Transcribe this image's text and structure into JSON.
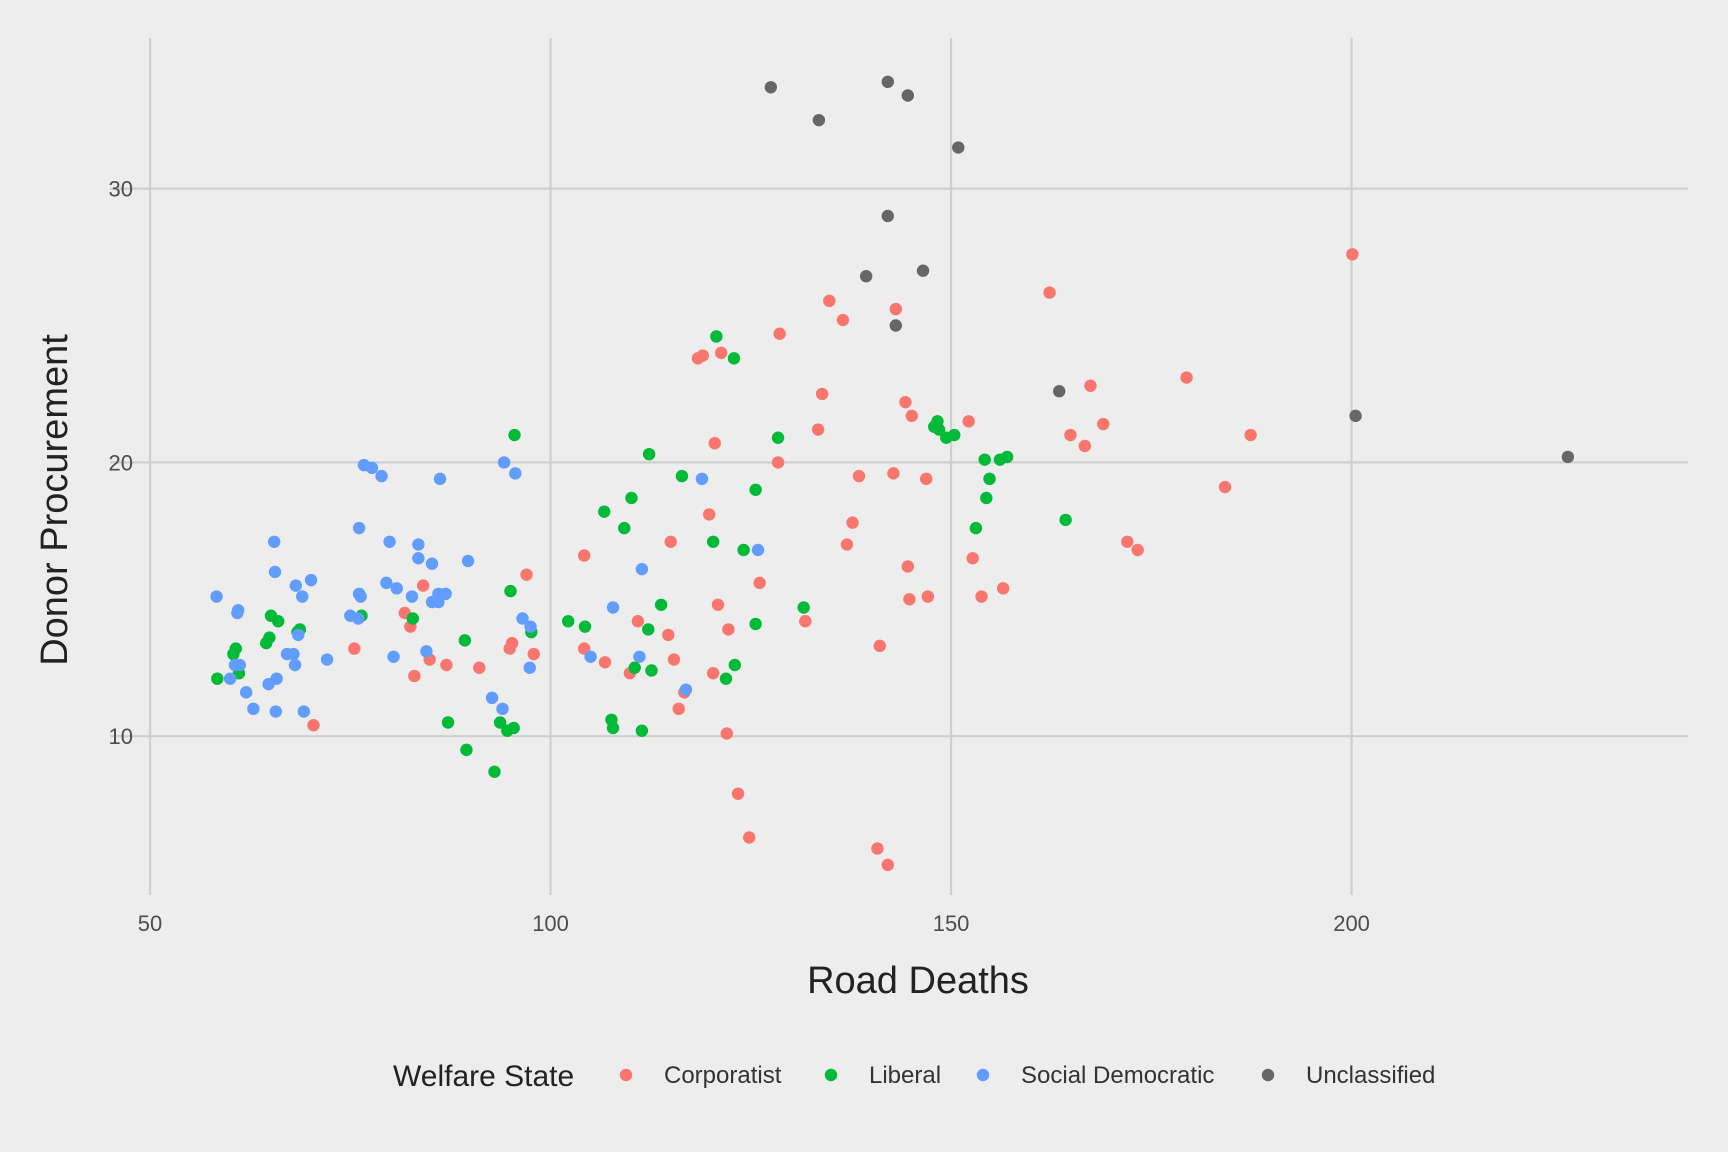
{
  "chart_data": {
    "type": "scatter",
    "xlabel": "Road Deaths",
    "ylabel": "Donor Procurement",
    "xlim": [
      45,
      242
    ],
    "ylim": [
      4.2,
      35.5
    ],
    "x_ticks": [
      50,
      100,
      150,
      200
    ],
    "y_ticks": [
      10,
      20,
      30
    ],
    "grid": true,
    "legend": {
      "title": "Welfare State",
      "placement": "bottom"
    },
    "series": [
      {
        "name": "Corporatist",
        "color": "#f8766d",
        "points": [
          [
            70.4,
            10.4
          ],
          [
            75.5,
            13.2
          ],
          [
            81.8,
            14.5
          ],
          [
            82.5,
            14.0
          ],
          [
            83.0,
            12.2
          ],
          [
            84.1,
            15.5
          ],
          [
            84.9,
            12.8
          ],
          [
            87.0,
            12.6
          ],
          [
            91.1,
            12.5
          ],
          [
            94.9,
            13.2
          ],
          [
            95.2,
            13.4
          ],
          [
            97.0,
            15.9
          ],
          [
            97.9,
            13.0
          ],
          [
            104.2,
            16.6
          ],
          [
            104.2,
            13.2
          ],
          [
            106.8,
            12.7
          ],
          [
            109.9,
            12.3
          ],
          [
            110.9,
            14.2
          ],
          [
            115.0,
            17.1
          ],
          [
            114.7,
            13.7
          ],
          [
            115.4,
            12.8
          ],
          [
            116.0,
            11.0
          ],
          [
            116.7,
            11.6
          ],
          [
            118.4,
            23.8
          ],
          [
            119.0,
            23.9
          ],
          [
            119.8,
            18.1
          ],
          [
            120.3,
            12.3
          ],
          [
            120.5,
            20.7
          ],
          [
            120.9,
            14.8
          ],
          [
            121.3,
            24.0
          ],
          [
            122.0,
            10.1
          ],
          [
            122.2,
            13.9
          ],
          [
            123.4,
            7.9
          ],
          [
            124.8,
            6.3
          ],
          [
            126.1,
            15.6
          ],
          [
            128.4,
            20.0
          ],
          [
            128.6,
            24.7
          ],
          [
            131.8,
            14.2
          ],
          [
            133.4,
            21.2
          ],
          [
            133.9,
            22.5
          ],
          [
            134.8,
            25.9
          ],
          [
            136.5,
            25.2
          ],
          [
            137.0,
            17.0
          ],
          [
            137.7,
            17.8
          ],
          [
            138.5,
            19.5
          ],
          [
            140.8,
            5.9
          ],
          [
            141.1,
            13.3
          ],
          [
            142.1,
            5.3
          ],
          [
            142.8,
            19.6
          ],
          [
            143.1,
            25.6
          ],
          [
            144.3,
            22.2
          ],
          [
            144.6,
            16.2
          ],
          [
            144.8,
            15.0
          ],
          [
            145.1,
            21.7
          ],
          [
            146.9,
            19.4
          ],
          [
            147.1,
            15.1
          ],
          [
            152.2,
            21.5
          ],
          [
            152.7,
            16.5
          ],
          [
            153.8,
            15.1
          ],
          [
            156.5,
            15.4
          ],
          [
            162.3,
            26.2
          ],
          [
            164.9,
            21.0
          ],
          [
            166.7,
            20.6
          ],
          [
            167.4,
            22.8
          ],
          [
            169.0,
            21.4
          ],
          [
            172.0,
            17.1
          ],
          [
            173.3,
            16.8
          ],
          [
            179.4,
            23.1
          ],
          [
            184.2,
            19.1
          ],
          [
            187.4,
            21.0
          ],
          [
            200.1,
            27.6
          ]
        ]
      },
      {
        "name": "Liberal",
        "color": "#00ba38",
        "points": [
          [
            58.4,
            12.1
          ],
          [
            60.4,
            13.0
          ],
          [
            60.7,
            13.2
          ],
          [
            61.1,
            12.3
          ],
          [
            64.5,
            13.4
          ],
          [
            64.9,
            13.6
          ],
          [
            65.1,
            14.4
          ],
          [
            66.0,
            14.2
          ],
          [
            68.4,
            13.8
          ],
          [
            68.7,
            13.9
          ],
          [
            76.4,
            14.4
          ],
          [
            82.8,
            14.3
          ],
          [
            87.2,
            10.5
          ],
          [
            89.3,
            13.5
          ],
          [
            89.5,
            9.5
          ],
          [
            93.0,
            8.7
          ],
          [
            93.7,
            10.5
          ],
          [
            94.6,
            10.2
          ],
          [
            95.4,
            10.3
          ],
          [
            95.0,
            15.3
          ],
          [
            95.5,
            21.0
          ],
          [
            97.6,
            13.8
          ],
          [
            102.2,
            14.2
          ],
          [
            104.3,
            14.0
          ],
          [
            106.7,
            18.2
          ],
          [
            107.6,
            10.6
          ],
          [
            107.8,
            10.3
          ],
          [
            109.2,
            17.6
          ],
          [
            110.1,
            18.7
          ],
          [
            110.5,
            12.5
          ],
          [
            111.4,
            10.2
          ],
          [
            112.2,
            13.9
          ],
          [
            112.3,
            20.3
          ],
          [
            112.6,
            12.4
          ],
          [
            113.8,
            14.8
          ],
          [
            116.4,
            19.5
          ],
          [
            120.3,
            17.1
          ],
          [
            120.7,
            24.6
          ],
          [
            121.9,
            12.1
          ],
          [
            122.9,
            23.8
          ],
          [
            123.0,
            12.6
          ],
          [
            124.1,
            16.8
          ],
          [
            125.6,
            14.1
          ],
          [
            125.6,
            19.0
          ],
          [
            128.4,
            20.9
          ],
          [
            131.6,
            14.7
          ],
          [
            147.9,
            21.3
          ],
          [
            148.3,
            21.5
          ],
          [
            148.5,
            21.2
          ],
          [
            149.4,
            20.9
          ],
          [
            150.4,
            21.0
          ],
          [
            153.1,
            17.6
          ],
          [
            154.2,
            20.1
          ],
          [
            154.4,
            18.7
          ],
          [
            154.8,
            19.4
          ],
          [
            156.1,
            20.1
          ],
          [
            157.0,
            20.2
          ],
          [
            164.3,
            17.9
          ]
        ]
      },
      {
        "name": "Social Democratic",
        "color": "#619cff",
        "points": [
          [
            58.3,
            15.1
          ],
          [
            60.0,
            12.1
          ],
          [
            60.6,
            12.6
          ],
          [
            60.9,
            14.5
          ],
          [
            61.0,
            14.6
          ],
          [
            61.2,
            12.6
          ],
          [
            62.0,
            11.6
          ],
          [
            62.9,
            11.0
          ],
          [
            64.8,
            11.9
          ],
          [
            65.5,
            17.1
          ],
          [
            65.6,
            16.0
          ],
          [
            65.7,
            10.9
          ],
          [
            65.8,
            12.1
          ],
          [
            67.1,
            13.0
          ],
          [
            67.9,
            13.0
          ],
          [
            68.1,
            12.6
          ],
          [
            68.2,
            15.5
          ],
          [
            68.5,
            13.7
          ],
          [
            69.0,
            15.1
          ],
          [
            69.2,
            10.9
          ],
          [
            70.1,
            15.7
          ],
          [
            72.1,
            12.8
          ],
          [
            75.0,
            14.4
          ],
          [
            76.0,
            14.3
          ],
          [
            76.1,
            17.6
          ],
          [
            76.1,
            15.2
          ],
          [
            76.3,
            15.1
          ],
          [
            76.7,
            19.9
          ],
          [
            77.7,
            19.8
          ],
          [
            78.9,
            19.5
          ],
          [
            79.5,
            15.6
          ],
          [
            79.9,
            17.1
          ],
          [
            80.4,
            12.9
          ],
          [
            80.8,
            15.4
          ],
          [
            82.7,
            15.1
          ],
          [
            83.5,
            16.5
          ],
          [
            83.5,
            17.0
          ],
          [
            84.5,
            13.1
          ],
          [
            85.2,
            16.3
          ],
          [
            85.2,
            14.9
          ],
          [
            86.0,
            15.2
          ],
          [
            86.0,
            14.9
          ],
          [
            86.2,
            19.4
          ],
          [
            86.9,
            15.2
          ],
          [
            89.7,
            16.4
          ],
          [
            92.7,
            11.4
          ],
          [
            94.0,
            11.0
          ],
          [
            94.2,
            20.0
          ],
          [
            95.6,
            19.6
          ],
          [
            96.5,
            14.3
          ],
          [
            97.4,
            12.5
          ],
          [
            97.5,
            14.0
          ],
          [
            105.0,
            12.9
          ],
          [
            107.8,
            14.7
          ],
          [
            111.1,
            12.9
          ],
          [
            111.4,
            16.1
          ],
          [
            116.9,
            11.7
          ],
          [
            118.9,
            19.4
          ],
          [
            125.9,
            16.8
          ]
        ]
      },
      {
        "name": "Unclassified",
        "color": "#666666",
        "points": [
          [
            127.5,
            33.7
          ],
          [
            133.5,
            32.5
          ],
          [
            139.4,
            26.8
          ],
          [
            142.1,
            29.0
          ],
          [
            142.1,
            33.9
          ],
          [
            143.1,
            25.0
          ],
          [
            144.6,
            33.4
          ],
          [
            146.5,
            27.0
          ],
          [
            150.9,
            31.5
          ],
          [
            163.5,
            22.6
          ],
          [
            200.5,
            21.7
          ],
          [
            227.0,
            20.2
          ]
        ]
      }
    ]
  }
}
